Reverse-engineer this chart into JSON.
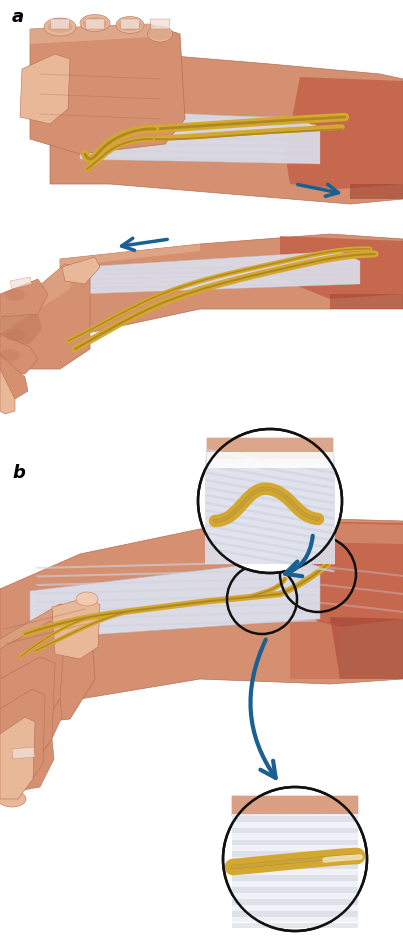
{
  "bg_color": "#ffffff",
  "label_a": "a",
  "label_b": "b",
  "fig_width": 4.03,
  "fig_height": 9.45,
  "dpi": 100,
  "skin_color": "#d49070",
  "skin_light": "#e8b898",
  "skin_lighter": "#f0cbb0",
  "skin_dark": "#b87055",
  "skin_shadow": "#a06045",
  "muscle_color": "#c05840",
  "muscle_dark": "#a04030",
  "nerve_color": "#d4a830",
  "nerve_dark": "#b08820",
  "nerve_light": "#e8c860",
  "tendon_color": "#e8eaf0",
  "tendon_stripe": "#d0d4e0",
  "tendon_dark": "#b8bcd0",
  "fascia_color": "#dde0ec",
  "arrow_color": "#1a6090",
  "circle_color": "#111111",
  "white": "#ffffff",
  "label_fontsize": 13,
  "nail_color": "#f0e0d8"
}
